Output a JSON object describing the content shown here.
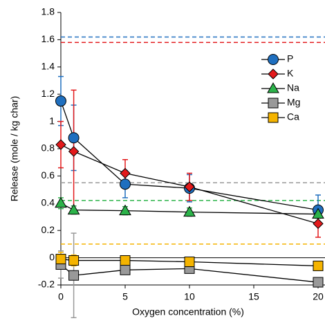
{
  "chart_data": {
    "type": "scatter-line",
    "xlabel": "Oxygen concentration (%)",
    "ylabel": "Release (mole / kg char)",
    "x": [
      0,
      1,
      5,
      10,
      20
    ],
    "xlim": [
      0,
      20
    ],
    "xticks": [
      0,
      5,
      10,
      15,
      20
    ],
    "ylim": [
      -0.2,
      1.8
    ],
    "yticks": [
      -0.2,
      0,
      0.2,
      0.4,
      0.6,
      0.8,
      1,
      1.2,
      1.4,
      1.6,
      1.8
    ],
    "legend": "upper right",
    "series": [
      {
        "name": "P",
        "color": "#1f6fbf",
        "marker": "circle",
        "values": [
          1.15,
          0.88,
          0.54,
          0.51,
          0.35
        ],
        "errors": [
          0.18,
          0.24,
          0.1,
          0.1,
          0.11
        ],
        "reference": 1.62
      },
      {
        "name": "K",
        "color": "#e31a1c",
        "marker": "diamond",
        "values": [
          0.83,
          0.78,
          0.62,
          0.52,
          0.25
        ],
        "errors": [
          0.17,
          0.45,
          0.1,
          0.1,
          0.1
        ],
        "reference": 1.58
      },
      {
        "name": "Na",
        "color": "#2cb34a",
        "marker": "triangle",
        "values": [
          0.4,
          0.35,
          0.345,
          0.335,
          0.32
        ],
        "errors": [
          0.04,
          0.03,
          0.03,
          0.03,
          0.03
        ],
        "reference": 0.42
      },
      {
        "name": "Mg",
        "color": "#999999",
        "marker": "square",
        "values": [
          -0.05,
          -0.13,
          -0.09,
          -0.08,
          -0.18
        ],
        "errors": [
          0.1,
          0.31,
          0.02,
          0.02,
          0.02
        ],
        "reference": 0.55
      },
      {
        "name": "Ca",
        "color": "#f5b400",
        "marker": "square",
        "values": [
          -0.01,
          -0.02,
          -0.02,
          -0.03,
          -0.06
        ],
        "errors": [
          0.05,
          0.04,
          0.02,
          0.02,
          0.02
        ],
        "reference": 0.1
      }
    ]
  }
}
